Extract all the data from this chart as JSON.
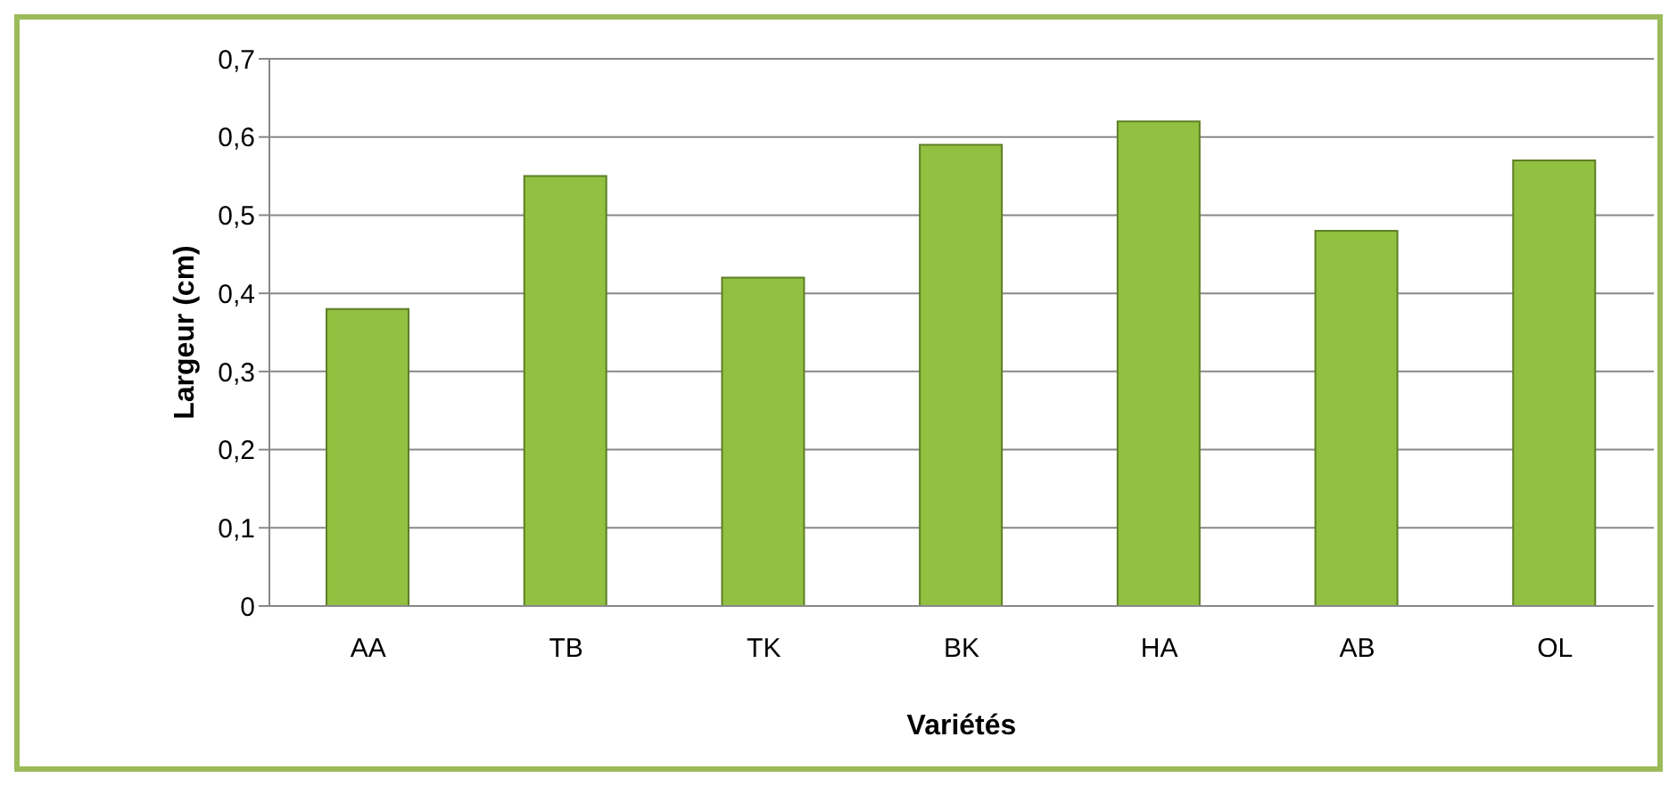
{
  "chart_data": {
    "type": "bar",
    "xlabel": "Variétés",
    "ylabel": "Largeur (cm)",
    "categories": [
      "AA",
      "TB",
      "TK",
      "BK",
      "HA",
      "AB",
      "OL"
    ],
    "values": [
      0.38,
      0.55,
      0.42,
      0.59,
      0.62,
      0.48,
      0.57
    ],
    "color": "#92c041",
    "ylim": [
      0,
      0.7
    ],
    "yticks": [
      {
        "value": 0,
        "label": "0"
      },
      {
        "value": 0.1,
        "label": "0,1"
      },
      {
        "value": 0.2,
        "label": "0,2"
      },
      {
        "value": 0.3,
        "label": "0,3"
      },
      {
        "value": 0.4,
        "label": "0,4"
      },
      {
        "value": 0.5,
        "label": "0,5"
      },
      {
        "value": 0.6,
        "label": "0,6"
      },
      {
        "value": 0.7,
        "label": "0,7"
      }
    ],
    "grid": "y"
  }
}
